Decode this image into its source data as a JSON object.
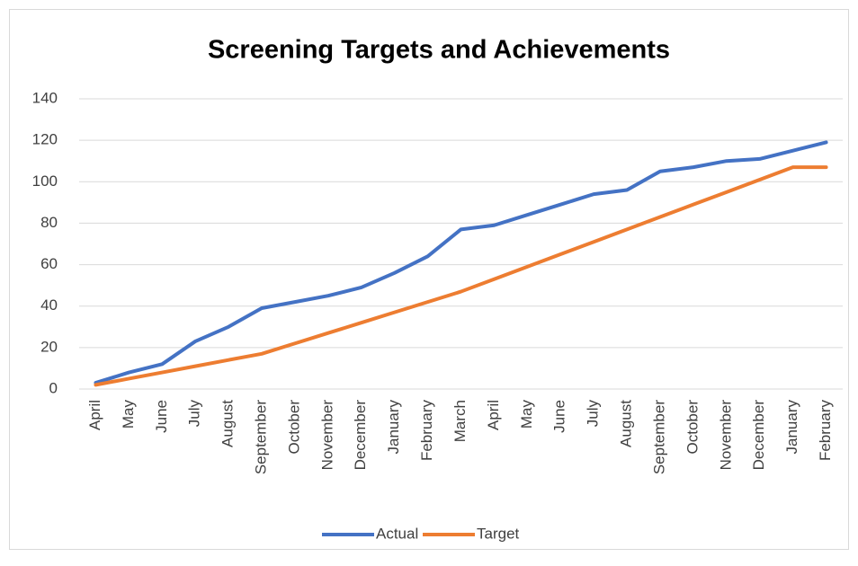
{
  "chart_data": {
    "type": "line",
    "title": "Screening Targets and Achievements",
    "categories": [
      "April",
      "May",
      "June",
      "July",
      "August",
      "September",
      "October",
      "November",
      "December",
      "January",
      "February",
      "March",
      "April",
      "May",
      "June",
      "July",
      "August",
      "September",
      "October",
      "November",
      "December",
      "January",
      "February"
    ],
    "series": [
      {
        "name": "Actual",
        "color": "#4472c4",
        "values": [
          3,
          8,
          12,
          23,
          30,
          39,
          42,
          45,
          49,
          56,
          64,
          77,
          79,
          84,
          89,
          94,
          96,
          105,
          107,
          110,
          111,
          115,
          119
        ]
      },
      {
        "name": "Target",
        "color": "#ed7d31",
        "values": [
          2,
          5,
          8,
          11,
          14,
          17,
          22,
          27,
          32,
          37,
          42,
          47,
          53,
          59,
          65,
          71,
          77,
          83,
          89,
          95,
          101,
          107,
          107
        ]
      }
    ],
    "ylim": [
      0,
      140
    ],
    "yticks": [
      0,
      20,
      40,
      60,
      80,
      100,
      120,
      140
    ],
    "grid": true,
    "legend": "bottom"
  }
}
